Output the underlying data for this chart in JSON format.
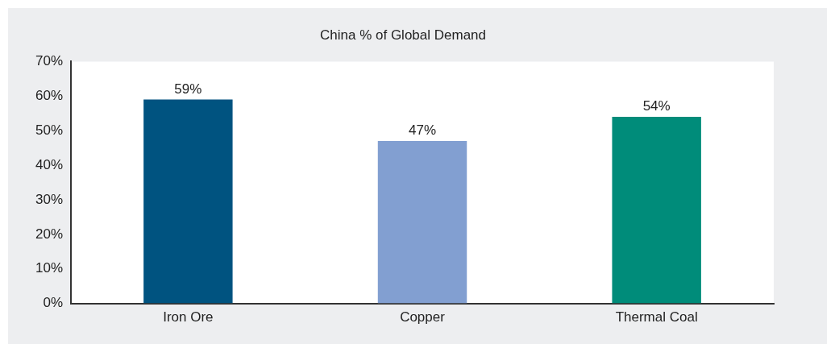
{
  "chart_data": {
    "type": "bar",
    "title": "China % of Global Demand",
    "categories": [
      "Iron Ore",
      "Copper",
      "Thermal Coal"
    ],
    "values": [
      59,
      47,
      54
    ],
    "colors": [
      "#005380",
      "#829fd1",
      "#008c7a"
    ],
    "value_labels": [
      "59%",
      "47%",
      "54%"
    ],
    "ylim": [
      0,
      70
    ],
    "yticks": [
      {
        "value": 0,
        "label": "0%"
      },
      {
        "value": 10,
        "label": "10%"
      },
      {
        "value": 20,
        "label": "20%"
      },
      {
        "value": 30,
        "label": "30%"
      },
      {
        "value": 40,
        "label": "40%"
      },
      {
        "value": 50,
        "label": "50%"
      },
      {
        "value": 60,
        "label": "60%"
      },
      {
        "value": 70,
        "label": "70%"
      }
    ],
    "grid": false,
    "legend": false
  }
}
